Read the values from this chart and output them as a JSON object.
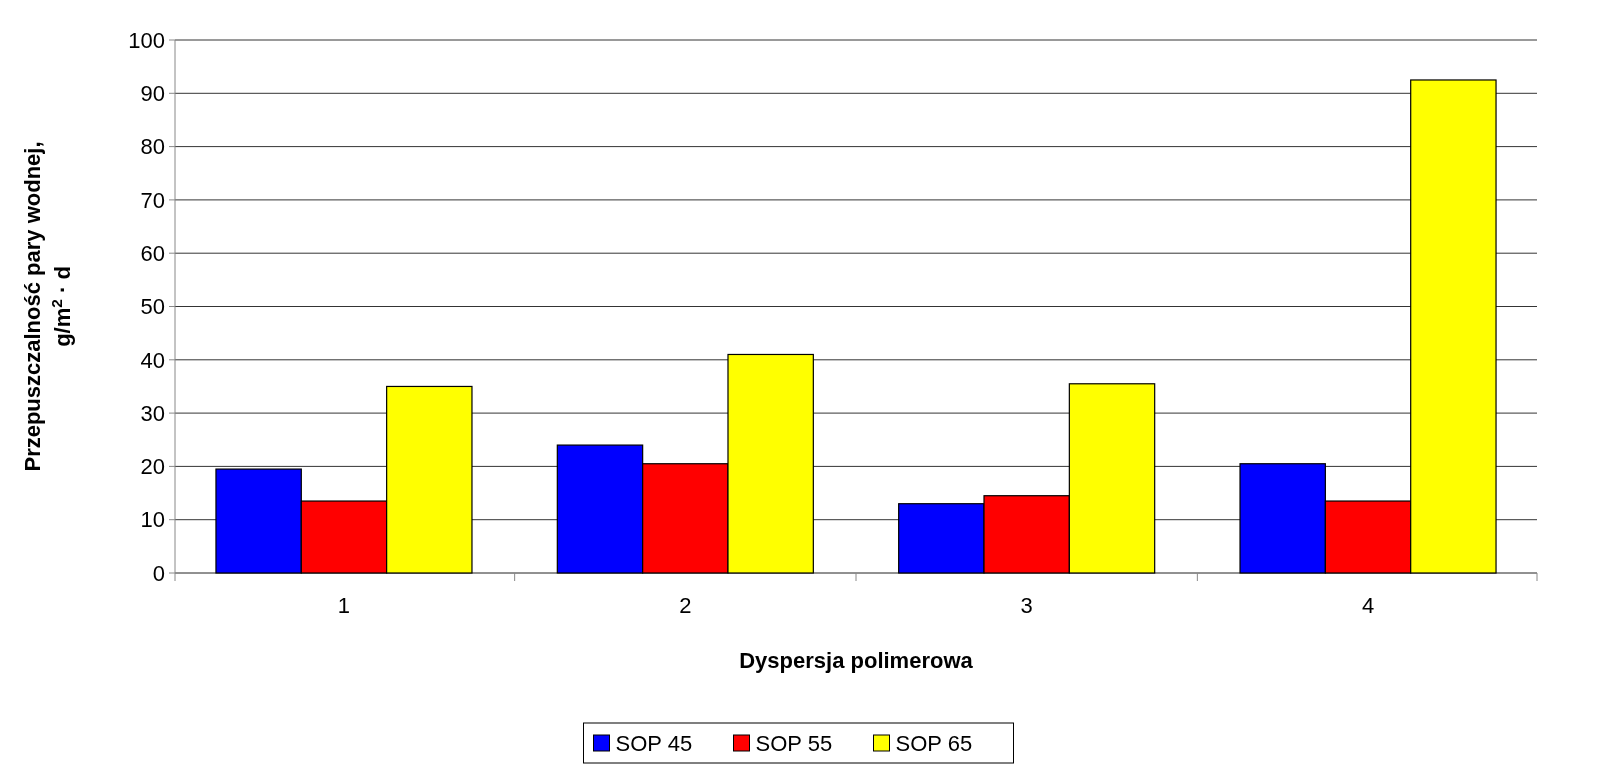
{
  "chart_data": {
    "type": "bar",
    "xlabel": "Dyspersja polimerowa",
    "ylabel": "Przepuszczalność pary wodnej, g/m$^{2}$ · d",
    "categories": [
      "1",
      "2",
      "3",
      "4"
    ],
    "series": [
      {
        "name": "SOP 45",
        "color": "#0000ff",
        "values": [
          19.5,
          24,
          13,
          20.5
        ]
      },
      {
        "name": "SOP 55",
        "color": "#ff0000",
        "values": [
          13.5,
          20.5,
          14.5,
          13.5
        ]
      },
      {
        "name": "SOP 65",
        "color": "#ffff00",
        "values": [
          35,
          41,
          35.5,
          92.5
        ]
      }
    ],
    "ylim": [
      0,
      100
    ],
    "yticks": [
      0,
      10,
      20,
      30,
      40,
      50,
      60,
      70,
      80,
      90,
      100
    ],
    "grid": "y",
    "legend": "bottom"
  }
}
